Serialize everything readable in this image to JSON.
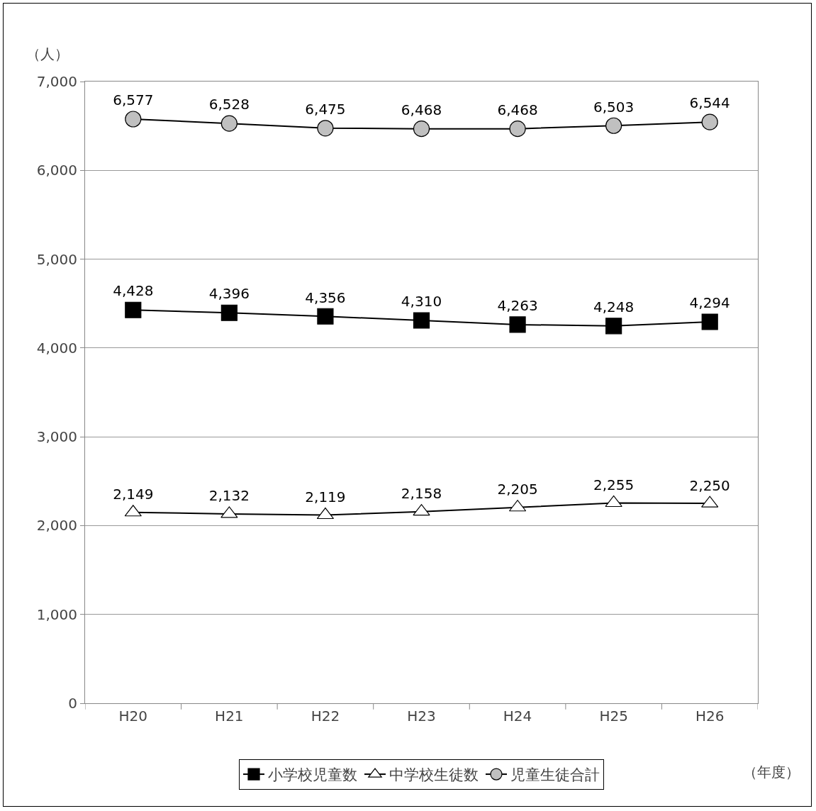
{
  "chart_data": {
    "type": "line",
    "ylabel": "（人）",
    "xlabel": "（年度）",
    "categories": [
      "H20",
      "H21",
      "H22",
      "H23",
      "H24",
      "H25",
      "H26"
    ],
    "series": [
      {
        "name": "小学校児童数",
        "color": "#000000",
        "marker": "square",
        "values": [
          4428,
          4396,
          4356,
          4310,
          4263,
          4248,
          4294
        ],
        "value_labels": [
          "4,428",
          "4,396",
          "4,356",
          "4,310",
          "4,263",
          "4,248",
          "4,294"
        ]
      },
      {
        "name": "中学校生徒数",
        "color": "#ffffff",
        "marker": "triangle",
        "values": [
          2149,
          2132,
          2119,
          2158,
          2205,
          2255,
          2250
        ],
        "value_labels": [
          "2,149",
          "2,132",
          "2,119",
          "2,158",
          "2,205",
          "2,255",
          "2,250"
        ]
      },
      {
        "name": "児童生徒合計",
        "color": "#c0c0c0",
        "marker": "circle",
        "values": [
          6577,
          6528,
          6475,
          6468,
          6468,
          6503,
          6544
        ],
        "value_labels": [
          "6,577",
          "6,528",
          "6,475",
          "6,468",
          "6,468",
          "6,503",
          "6,544"
        ]
      }
    ],
    "ylim": [
      0,
      7000
    ],
    "yticks": [
      0,
      {
        "value": 1000,
        "label": "1,000"
      },
      {
        "value": 2000,
        "label": "2,000"
      },
      {
        "value": 3000,
        "label": "3,000"
      },
      {
        "value": 4000,
        "label": "4,000"
      },
      {
        "value": 5000,
        "label": "5,000"
      },
      {
        "value": 6000,
        "label": "6,000"
      },
      {
        "value": 7000,
        "label": "7,000"
      }
    ],
    "grid": "y",
    "legend": "bottom",
    "line_style": "solid"
  }
}
